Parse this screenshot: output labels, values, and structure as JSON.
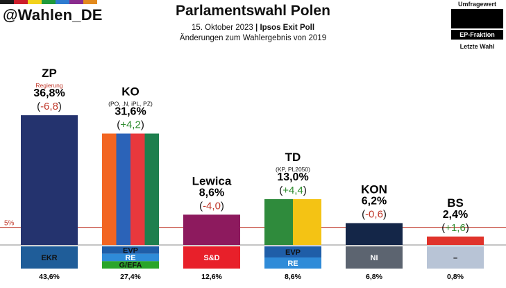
{
  "header": {
    "handle": "@Wahlen_DE",
    "title": "Parlamentswahl Polen",
    "date": "15. Oktober 2023",
    "separator": "|",
    "source": "Ipsos Exit Poll",
    "subtitle": "Änderungen zum Wahlergebnis von 2019",
    "brand_colors": [
      "#1b1b1b",
      "#cc1e2b",
      "#f2d21b",
      "#1f9a3c",
      "#2e7bd0",
      "#8a2b8e",
      "#e38a1d"
    ]
  },
  "legend": {
    "top_label": "Umfragewert",
    "faction_label": "EP-Fraktion",
    "bottom_label": "Letzte Wahl"
  },
  "threshold": {
    "label": "5%",
    "value": 5,
    "color": "#c0392b"
  },
  "chart_data": {
    "type": "bar",
    "title": "Parlamentswahl Polen",
    "categories": [
      "ZP",
      "KO",
      "Lewica",
      "TD",
      "KON",
      "BS"
    ],
    "values": [
      36.8,
      31.6,
      8.6,
      13.0,
      6.2,
      2.4
    ],
    "ylim": [
      0,
      40
    ],
    "bars": [
      {
        "name": "ZP",
        "value": 36.8,
        "value_label": "36,8%",
        "change": -6.8,
        "change_label": "-6,8",
        "note": "Regierung",
        "sub": "",
        "colors": [
          "#24336e"
        ],
        "factions": [
          {
            "label": "EKR",
            "color": "#1f5d99",
            "text_color": "#111111"
          }
        ],
        "last": "43,6%"
      },
      {
        "name": "KO",
        "value": 31.6,
        "value_label": "31,6%",
        "change": 4.2,
        "change_label": "+4,2",
        "note": "",
        "sub": "(PO, .N, iPL, PZ)",
        "colors": [
          "#f26522",
          "#2b63b8",
          "#e8383d",
          "#1e7f4e"
        ],
        "factions": [
          {
            "label": "EVP",
            "color": "#1f5ea8",
            "text_color": "#111111"
          },
          {
            "label": "RE",
            "color": "#2f8bd8",
            "text_color": "#ffffff"
          },
          {
            "label": "G/EFA",
            "color": "#2aa52a",
            "text_color": "#111111"
          }
        ],
        "last": "27,4%"
      },
      {
        "name": "Lewica",
        "value": 8.6,
        "value_label": "8,6%",
        "change": -4.0,
        "change_label": "-4,0",
        "note": "",
        "sub": "",
        "colors": [
          "#8d1a5e"
        ],
        "factions": [
          {
            "label": "S&D",
            "color": "#e8202a",
            "text_color": "#ffffff"
          }
        ],
        "last": "12,6%"
      },
      {
        "name": "TD",
        "value": 13.0,
        "value_label": "13,0%",
        "change": 4.4,
        "change_label": "+4,4",
        "note": "",
        "sub": "(KP, PL2050)",
        "colors": [
          "#2f8b3c",
          "#f4c314"
        ],
        "factions": [
          {
            "label": "EVP",
            "color": "#1f5ea8",
            "text_color": "#111111"
          },
          {
            "label": "RE",
            "color": "#2f8bd8",
            "text_color": "#ffffff"
          }
        ],
        "last": "8,6%"
      },
      {
        "name": "KON",
        "value": 6.2,
        "value_label": "6,2%",
        "change": -0.6,
        "change_label": "-0,6",
        "note": "",
        "sub": "",
        "colors": [
          "#142648"
        ],
        "factions": [
          {
            "label": "NI",
            "color": "#5c6470",
            "text_color": "#ffffff"
          }
        ],
        "last": "6,8%"
      },
      {
        "name": "BS",
        "value": 2.4,
        "value_label": "2,4%",
        "change": 1.6,
        "change_label": "+1,6",
        "note": "",
        "sub": "",
        "colors": [
          "#e0332b"
        ],
        "factions": [
          {
            "label": "–",
            "color": "#b8c4d6",
            "text_color": "#111111"
          }
        ],
        "last": "0,8%"
      }
    ]
  }
}
